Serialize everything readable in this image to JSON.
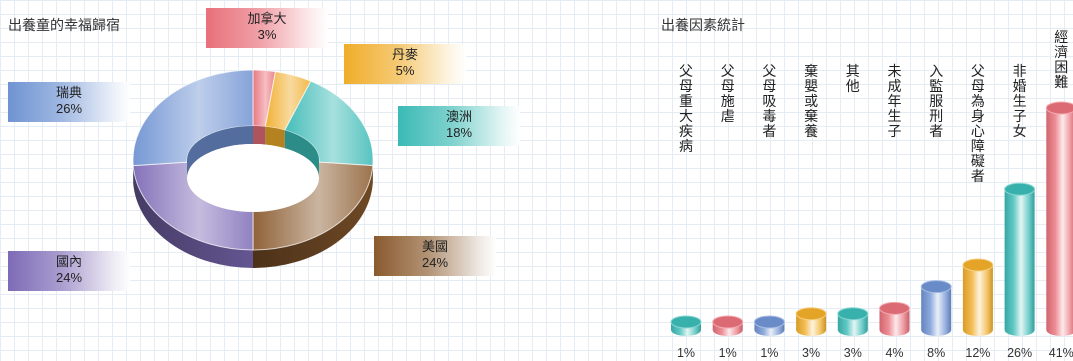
{
  "pie_chart": {
    "title": "出養童的幸福歸宿"
  },
  "bar_chart": {
    "title": "出養因素統計"
  },
  "colors": {
    "red": "#e8707a",
    "orange": "#f0ad2a",
    "teal": "#3bbab5",
    "brown": "#8a5a2e",
    "purple": "#7d6bb6",
    "blue": "#6f93d2"
  },
  "chart_data": [
    {
      "type": "pie",
      "title": "出養童的幸福歸宿",
      "style": "3d donut",
      "slices": [
        {
          "label": "加拿大",
          "percent_text": "3%",
          "value": 3,
          "color": "#e8707a"
        },
        {
          "label": "丹麥",
          "percent_text": "5%",
          "value": 5,
          "color": "#f0ad2a"
        },
        {
          "label": "澳洲",
          "percent_text": "18%",
          "value": 18,
          "color": "#3bbab5"
        },
        {
          "label": "美國",
          "percent_text": "24%",
          "value": 24,
          "color": "#8a5a2e"
        },
        {
          "label": "國內",
          "percent_text": "24%",
          "value": 24,
          "color": "#7d6bb6"
        },
        {
          "label": "瑞典",
          "percent_text": "26%",
          "value": 26,
          "color": "#6f93d2"
        }
      ]
    },
    {
      "type": "bar",
      "title": "出養因素統計",
      "style": "3d cylinders",
      "categories": [
        "父母重大疾病",
        "父母施虐",
        "父母吸毒者",
        "棄嬰或棄養",
        "其他",
        "未成年生子",
        "入監服刑者",
        "父母為身心障礙者",
        "非婚生子女",
        "經濟困難"
      ],
      "values": [
        1,
        1,
        1,
        3,
        3,
        4,
        8,
        12,
        26,
        41
      ],
      "value_labels": [
        "1%",
        "1%",
        "1%",
        "3%",
        "3%",
        "4%",
        "8%",
        "12%",
        "26%",
        "41%"
      ],
      "colors": [
        "#3bbab5",
        "#e8707a",
        "#6f93d2",
        "#f0ad2a",
        "#3bbab5",
        "#e8707a",
        "#6f93d2",
        "#f0ad2a",
        "#3bbab5",
        "#e8707a"
      ],
      "ylim": [
        0,
        41
      ],
      "grid": true
    }
  ]
}
